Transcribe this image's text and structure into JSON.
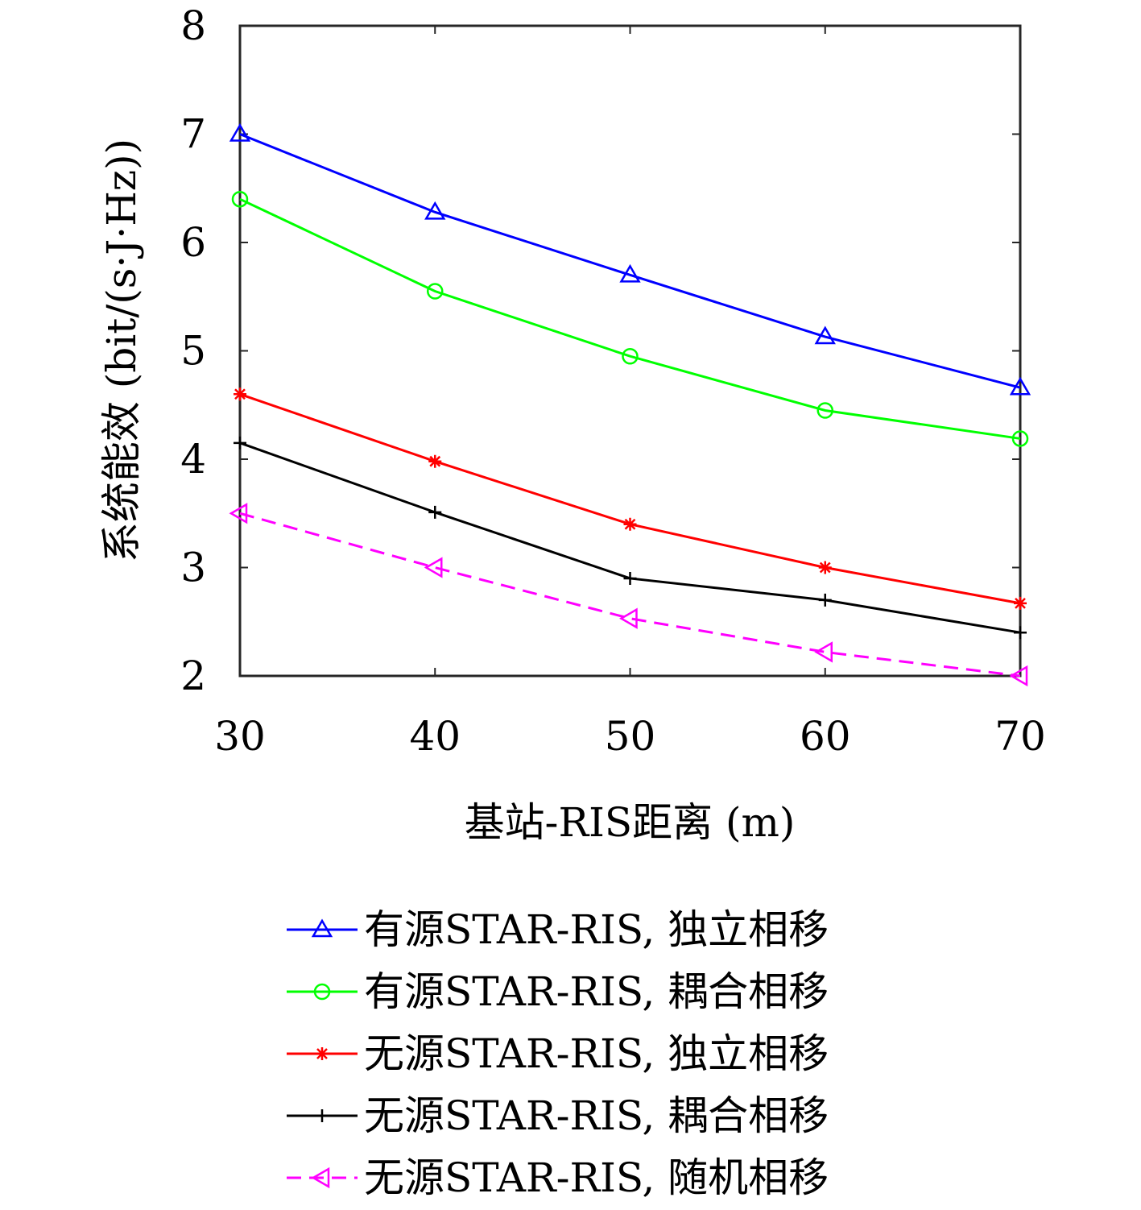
{
  "chart_data": {
    "type": "line",
    "xlabel": "基站-RIS距离 (m)",
    "ylabel": "系统能效 (bit/(s·J·Hz))",
    "x": [
      30,
      40,
      50,
      60,
      70
    ],
    "xticks": [
      "30",
      "40",
      "50",
      "60",
      "70"
    ],
    "yticks": [
      "2",
      "3",
      "4",
      "5",
      "6",
      "7",
      "8"
    ],
    "xlim": [
      30,
      70
    ],
    "ylim": [
      2,
      8
    ],
    "grid": false,
    "legend_position": "bottom (below chart)",
    "series": [
      {
        "name": "有源STAR-RIS, 独立相移",
        "values": [
          7.0,
          6.28,
          5.7,
          5.13,
          4.66
        ],
        "color": "#0000ff",
        "marker": "triangle-up",
        "dash": "solid"
      },
      {
        "name": "有源STAR-RIS, 耦合相移",
        "values": [
          6.4,
          5.55,
          4.95,
          4.45,
          4.19
        ],
        "color": "#00ff00",
        "marker": "circle",
        "dash": "solid"
      },
      {
        "name": "无源STAR-RIS, 独立相移",
        "values": [
          4.6,
          3.98,
          3.4,
          3.0,
          2.67
        ],
        "color": "#ff0000",
        "marker": "asterisk",
        "dash": "solid"
      },
      {
        "name": "无源STAR-RIS, 耦合相移",
        "values": [
          4.15,
          3.51,
          2.9,
          2.7,
          2.4
        ],
        "color": "#000000",
        "marker": "plus",
        "dash": "solid"
      },
      {
        "name": "无源STAR-RIS, 随机相移",
        "values": [
          3.5,
          3.0,
          2.53,
          2.22,
          2.0
        ],
        "color": "#ff00ff",
        "marker": "triangle-left",
        "dash": "dashed"
      }
    ]
  }
}
